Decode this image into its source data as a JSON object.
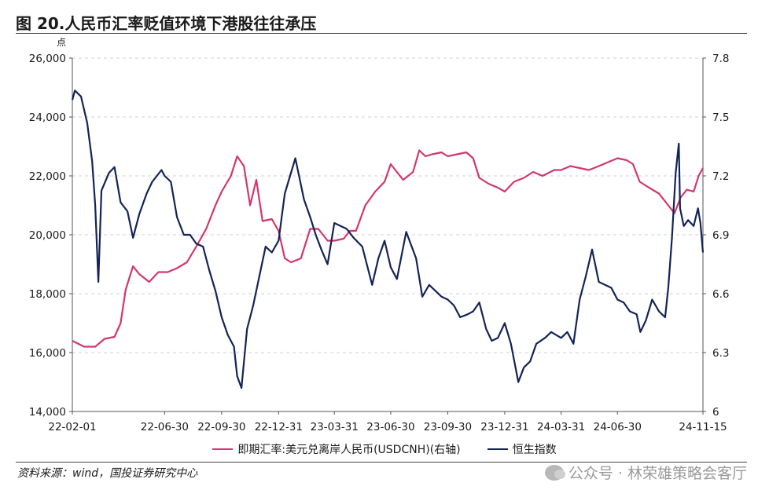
{
  "figure": {
    "title": "图 20.人民币汇率贬值环境下港股往往承压",
    "source": "资料来源：wind，国投证券研究中心",
    "watermark": "公众号 · 林荣雄策略会客厅"
  },
  "chart_data": {
    "type": "line",
    "left_axis": {
      "unit": "点",
      "ylim": [
        14000,
        26000
      ],
      "ticks": [
        14000,
        16000,
        18000,
        20000,
        22000,
        24000,
        26000
      ],
      "tick_labels": [
        "14,000",
        "16,000",
        "18,000",
        "20,000",
        "22,000",
        "24,000",
        "26,000"
      ]
    },
    "right_axis": {
      "ylim": [
        6.0,
        7.8
      ],
      "ticks": [
        6.0,
        6.3,
        6.6,
        6.9,
        7.2,
        7.5,
        7.8
      ],
      "tick_labels": [
        "6",
        "6.3",
        "6.6",
        "6.9",
        "7.2",
        "7.5",
        "7.8"
      ]
    },
    "x_axis": {
      "range": [
        "2022-02-01",
        "2024-11-15"
      ],
      "tick_dates": [
        "2022-02-01",
        "2022-06-30",
        "2022-09-30",
        "2022-12-31",
        "2023-03-31",
        "2023-06-30",
        "2023-09-30",
        "2023-12-31",
        "2024-03-31",
        "2024-06-30",
        "2024-11-15"
      ],
      "tick_labels": [
        "22-02-01",
        "22-06-30",
        "22-09-30",
        "22-12-31",
        "23-03-31",
        "23-06-30",
        "23-09-30",
        "23-12-31",
        "24-03-31",
        "24-06-30",
        "24-11-15"
      ]
    },
    "grid": "horizontal dashed",
    "legend_position": "bottom-center",
    "series": [
      {
        "name": "即期汇率:美元兑离岸人民币(USDCNH)(右轴)",
        "axis": "right",
        "color": "#d1376b",
        "points": [
          [
            "2022-02-01",
            6.36
          ],
          [
            "2022-02-20",
            6.33
          ],
          [
            "2022-03-10",
            6.33
          ],
          [
            "2022-03-25",
            6.37
          ],
          [
            "2022-04-10",
            6.38
          ],
          [
            "2022-04-20",
            6.45
          ],
          [
            "2022-04-28",
            6.62
          ],
          [
            "2022-05-10",
            6.74
          ],
          [
            "2022-05-20",
            6.7
          ],
          [
            "2022-06-05",
            6.66
          ],
          [
            "2022-06-20",
            6.71
          ],
          [
            "2022-07-05",
            6.71
          ],
          [
            "2022-07-20",
            6.73
          ],
          [
            "2022-08-05",
            6.76
          ],
          [
            "2022-08-20",
            6.84
          ],
          [
            "2022-09-05",
            6.93
          ],
          [
            "2022-09-20",
            7.05
          ],
          [
            "2022-09-30",
            7.12
          ],
          [
            "2022-10-15",
            7.2
          ],
          [
            "2022-10-25",
            7.3
          ],
          [
            "2022-11-05",
            7.25
          ],
          [
            "2022-11-15",
            7.05
          ],
          [
            "2022-11-25",
            7.18
          ],
          [
            "2022-12-05",
            6.97
          ],
          [
            "2022-12-20",
            6.98
          ],
          [
            "2022-12-31",
            6.92
          ],
          [
            "2023-01-10",
            6.78
          ],
          [
            "2023-01-20",
            6.76
          ],
          [
            "2023-02-05",
            6.78
          ],
          [
            "2023-02-20",
            6.93
          ],
          [
            "2023-03-05",
            6.93
          ],
          [
            "2023-03-20",
            6.87
          ],
          [
            "2023-03-31",
            6.87
          ],
          [
            "2023-04-15",
            6.88
          ],
          [
            "2023-04-25",
            6.92
          ],
          [
            "2023-05-05",
            6.92
          ],
          [
            "2023-05-20",
            7.05
          ],
          [
            "2023-06-05",
            7.12
          ],
          [
            "2023-06-20",
            7.17
          ],
          [
            "2023-06-30",
            7.26
          ],
          [
            "2023-07-10",
            7.22
          ],
          [
            "2023-07-20",
            7.18
          ],
          [
            "2023-08-05",
            7.22
          ],
          [
            "2023-08-15",
            7.33
          ],
          [
            "2023-08-25",
            7.3
          ],
          [
            "2023-09-05",
            7.31
          ],
          [
            "2023-09-20",
            7.32
          ],
          [
            "2023-09-30",
            7.3
          ],
          [
            "2023-10-15",
            7.31
          ],
          [
            "2023-10-30",
            7.32
          ],
          [
            "2023-11-10",
            7.29
          ],
          [
            "2023-11-20",
            7.19
          ],
          [
            "2023-12-05",
            7.16
          ],
          [
            "2023-12-20",
            7.14
          ],
          [
            "2023-12-31",
            7.12
          ],
          [
            "2024-01-15",
            7.17
          ],
          [
            "2024-01-31",
            7.19
          ],
          [
            "2024-02-15",
            7.22
          ],
          [
            "2024-03-01",
            7.2
          ],
          [
            "2024-03-20",
            7.23
          ],
          [
            "2024-03-31",
            7.23
          ],
          [
            "2024-04-15",
            7.25
          ],
          [
            "2024-04-30",
            7.24
          ],
          [
            "2024-05-15",
            7.23
          ],
          [
            "2024-05-31",
            7.25
          ],
          [
            "2024-06-15",
            7.27
          ],
          [
            "2024-06-30",
            7.29
          ],
          [
            "2024-07-15",
            7.28
          ],
          [
            "2024-07-25",
            7.26
          ],
          [
            "2024-08-05",
            7.17
          ],
          [
            "2024-08-20",
            7.14
          ],
          [
            "2024-09-05",
            7.11
          ],
          [
            "2024-09-20",
            7.05
          ],
          [
            "2024-09-30",
            7.01
          ],
          [
            "2024-10-10",
            7.09
          ],
          [
            "2024-10-20",
            7.13
          ],
          [
            "2024-10-31",
            7.12
          ],
          [
            "2024-11-08",
            7.2
          ],
          [
            "2024-11-15",
            7.24
          ]
        ]
      },
      {
        "name": "恒生指数",
        "axis": "left",
        "color": "#142356",
        "points": [
          [
            "2022-02-01",
            24580
          ],
          [
            "2022-02-05",
            24900
          ],
          [
            "2022-02-15",
            24700
          ],
          [
            "2022-02-25",
            23800
          ],
          [
            "2022-03-05",
            22500
          ],
          [
            "2022-03-10",
            21000
          ],
          [
            "2022-03-15",
            18400
          ],
          [
            "2022-03-20",
            21500
          ],
          [
            "2022-04-01",
            22100
          ],
          [
            "2022-04-10",
            22300
          ],
          [
            "2022-04-20",
            21100
          ],
          [
            "2022-05-01",
            20800
          ],
          [
            "2022-05-10",
            19900
          ],
          [
            "2022-05-20",
            20700
          ],
          [
            "2022-06-01",
            21400
          ],
          [
            "2022-06-10",
            21800
          ],
          [
            "2022-06-25",
            22200
          ],
          [
            "2022-06-30",
            22000
          ],
          [
            "2022-07-10",
            21800
          ],
          [
            "2022-07-20",
            20600
          ],
          [
            "2022-07-31",
            20000
          ],
          [
            "2022-08-10",
            20000
          ],
          [
            "2022-08-20",
            19700
          ],
          [
            "2022-08-31",
            19600
          ],
          [
            "2022-09-10",
            18800
          ],
          [
            "2022-09-20",
            18100
          ],
          [
            "2022-09-30",
            17200
          ],
          [
            "2022-10-10",
            16600
          ],
          [
            "2022-10-20",
            16200
          ],
          [
            "2022-10-25",
            15200
          ],
          [
            "2022-11-01",
            14800
          ],
          [
            "2022-11-10",
            16800
          ],
          [
            "2022-11-20",
            17600
          ],
          [
            "2022-11-30",
            18600
          ],
          [
            "2022-12-10",
            19600
          ],
          [
            "2022-12-20",
            19400
          ],
          [
            "2022-12-31",
            19800
          ],
          [
            "2023-01-10",
            21400
          ],
          [
            "2023-01-27",
            22600
          ],
          [
            "2023-02-10",
            21200
          ],
          [
            "2023-02-20",
            20600
          ],
          [
            "2023-03-01",
            20000
          ],
          [
            "2023-03-10",
            19500
          ],
          [
            "2023-03-20",
            19000
          ],
          [
            "2023-03-31",
            20400
          ],
          [
            "2023-04-10",
            20300
          ],
          [
            "2023-04-20",
            20200
          ],
          [
            "2023-05-01",
            19900
          ],
          [
            "2023-05-15",
            19600
          ],
          [
            "2023-05-31",
            18300
          ],
          [
            "2023-06-10",
            19200
          ],
          [
            "2023-06-20",
            19800
          ],
          [
            "2023-06-30",
            18900
          ],
          [
            "2023-07-10",
            18500
          ],
          [
            "2023-07-25",
            20100
          ],
          [
            "2023-08-10",
            19200
          ],
          [
            "2023-08-20",
            17900
          ],
          [
            "2023-08-31",
            18300
          ],
          [
            "2023-09-10",
            18100
          ],
          [
            "2023-09-20",
            17900
          ],
          [
            "2023-09-30",
            17800
          ],
          [
            "2023-10-10",
            17600
          ],
          [
            "2023-10-20",
            17200
          ],
          [
            "2023-11-01",
            17300
          ],
          [
            "2023-11-10",
            17400
          ],
          [
            "2023-11-20",
            17700
          ],
          [
            "2023-12-01",
            16800
          ],
          [
            "2023-12-10",
            16400
          ],
          [
            "2023-12-20",
            16500
          ],
          [
            "2023-12-31",
            17000
          ],
          [
            "2024-01-10",
            16300
          ],
          [
            "2024-01-22",
            15000
          ],
          [
            "2024-01-31",
            15500
          ],
          [
            "2024-02-10",
            15700
          ],
          [
            "2024-02-20",
            16300
          ],
          [
            "2024-03-05",
            16500
          ],
          [
            "2024-03-15",
            16700
          ],
          [
            "2024-03-31",
            16500
          ],
          [
            "2024-04-10",
            16700
          ],
          [
            "2024-04-20",
            16300
          ],
          [
            "2024-04-30",
            17800
          ],
          [
            "2024-05-10",
            18600
          ],
          [
            "2024-05-20",
            19500
          ],
          [
            "2024-05-31",
            18400
          ],
          [
            "2024-06-10",
            18300
          ],
          [
            "2024-06-20",
            18200
          ],
          [
            "2024-06-30",
            17800
          ],
          [
            "2024-07-10",
            17700
          ],
          [
            "2024-07-20",
            17400
          ],
          [
            "2024-07-31",
            17300
          ],
          [
            "2024-08-06",
            16700
          ],
          [
            "2024-08-15",
            17100
          ],
          [
            "2024-08-25",
            17800
          ],
          [
            "2024-09-05",
            17400
          ],
          [
            "2024-09-15",
            17200
          ],
          [
            "2024-09-20",
            18200
          ],
          [
            "2024-09-26",
            19900
          ],
          [
            "2024-10-02",
            22100
          ],
          [
            "2024-10-07",
            23100
          ],
          [
            "2024-10-09",
            20900
          ],
          [
            "2024-10-15",
            20300
          ],
          [
            "2024-10-22",
            20500
          ],
          [
            "2024-10-31",
            20300
          ],
          [
            "2024-11-07",
            20900
          ],
          [
            "2024-11-11",
            20400
          ],
          [
            "2024-11-15",
            19400
          ]
        ]
      }
    ]
  }
}
